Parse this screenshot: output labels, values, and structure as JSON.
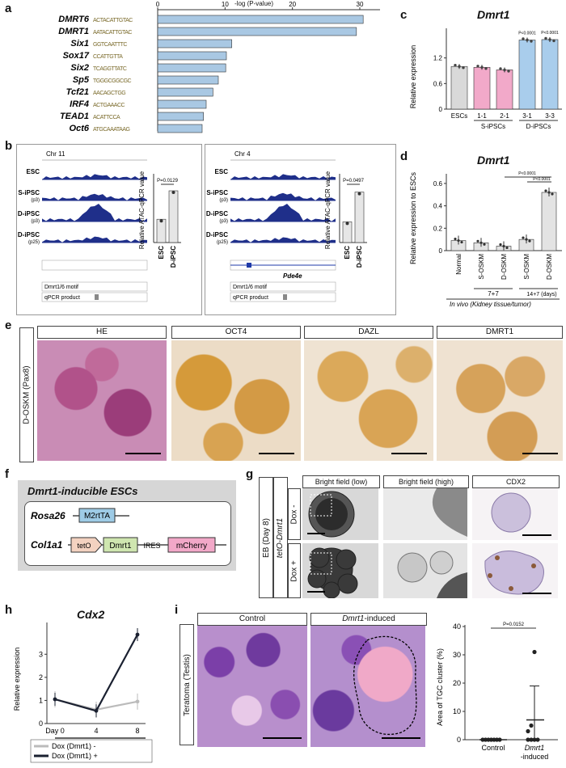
{
  "panels": {
    "a": "a",
    "b": "b",
    "c": "c",
    "d": "d",
    "e": "e",
    "f": "f",
    "g": "g",
    "h": "h",
    "i": "i"
  },
  "panel_a": {
    "axis_label": "-log (P-value)",
    "ticks": [
      "0",
      "10",
      "20",
      "30"
    ],
    "motifs": [
      "DMRT6",
      "DMRT1",
      "Six1",
      "Sox17",
      "Six2",
      "Sp5",
      "Tcf21",
      "IRF4",
      "TEAD1",
      "Oct6"
    ],
    "motif_logos": [
      "ACTACATTGTAC",
      "AATACATTGTAC",
      "GGTCAATTTC",
      "CCATTGTTA",
      "TCAGGTTATC",
      "TGGGCGGCGC",
      "AACAGCTGG",
      "ACTGAAACC",
      "ACATTCCA",
      "ATGCAAATAAG"
    ],
    "bar_color": "#a9c8e3"
  },
  "panel_b": {
    "loci": [
      {
        "chr": "Chr 11",
        "gene": "",
        "tracks": [
          "ESC",
          "S-iPSC",
          "D-iPSC",
          "D-iPSC"
        ],
        "track_sub": [
          "",
          "(p3)",
          "(p3)",
          "(p25)"
        ],
        "motif": "Dmrt1/6 motif",
        "qpcr": "qPCR product",
        "p": "P=0.0129"
      },
      {
        "chr": "Chr 4",
        "gene": "Pde4e",
        "tracks": [
          "ESC",
          "S-iPSC",
          "D-iPSC",
          "D-iPSC"
        ],
        "track_sub": [
          "",
          "(p3)",
          "(p3)",
          "(p25)"
        ],
        "motif": "Dmrt1/6 motif",
        "qpcr": "qPCR product",
        "p": "P=0.0497"
      }
    ],
    "bar_ylabel": "Relative ATAC-qPCR value",
    "bar_categories": [
      "ESC",
      "D-iPSC"
    ],
    "track_color": "#1f2f8a"
  },
  "chart_data": [
    {
      "type": "bar",
      "title": "",
      "xlabel": "-log (P-value)",
      "categories": [
        "DMRT6",
        "DMRT1",
        "Six1",
        "Sox17",
        "Six2",
        "Sp5",
        "Tcf21",
        "IRF4",
        "TEAD1",
        "Oct6"
      ],
      "values": [
        30.5,
        29.5,
        11.0,
        10.2,
        10.1,
        9.0,
        8.2,
        7.2,
        6.8,
        6.6
      ],
      "xlim": [
        0,
        33
      ]
    },
    {
      "type": "bar",
      "title": "Dmrt1",
      "ylabel": "Relative expression",
      "categories": [
        "ESCs",
        "1-1",
        "2-1",
        "3-1",
        "3-3"
      ],
      "groups": [
        "S-iPSCs",
        "D-iPSCs"
      ],
      "values": [
        1.0,
        0.98,
        0.92,
        1.62,
        1.63
      ],
      "ylim": [
        0,
        1.8
      ],
      "yticks": [
        "0",
        "0.6",
        "1.2"
      ],
      "pvalues": [
        "P<0.0001",
        "P<0.0001"
      ],
      "colors": [
        "#d9d9d9",
        "#f2a9c9",
        "#f2a9c9",
        "#a9cdec",
        "#a9cdec"
      ]
    },
    {
      "type": "bar",
      "title": "Dmrt1",
      "ylabel": "Relative expression to ESCs",
      "categories": [
        "Normal",
        "S-OSKM",
        "D-OSKM",
        "S-OSKM",
        "D-OSKM"
      ],
      "groups": [
        "7+7",
        "14+7 (days)"
      ],
      "group_note": "In vivo (Kidney tissue/tumor)",
      "values": [
        0.09,
        0.07,
        0.04,
        0.1,
        0.52
      ],
      "ylim": [
        0,
        0.65
      ],
      "yticks": [
        "0",
        "0.2",
        "0.4",
        "0.6"
      ],
      "pvalues": [
        "P<0.0001",
        "P<0.0001"
      ]
    },
    {
      "type": "line",
      "title": "Cdx2",
      "ylabel": "Relative expression",
      "x": [
        "Day 0",
        "4",
        "8"
      ],
      "series": [
        {
          "name": "Dox (Dmrt1) -",
          "values": [
            1.05,
            0.6,
            0.95
          ],
          "color": "#bbbbbb"
        },
        {
          "name": "Dox (Dmrt1) +",
          "values": [
            1.05,
            0.55,
            3.85
          ],
          "color": "#1a2030"
        }
      ],
      "ylim": [
        0,
        4.2
      ],
      "yticks": [
        "0",
        "1",
        "2",
        "3"
      ],
      "xgroup": "tetO-Dmrt1"
    },
    {
      "type": "scatter",
      "ylabel": "Area of TGC cluster (%)",
      "categories": [
        "Control",
        "Dmrt1 -induced"
      ],
      "pvalue": "P=0.0152",
      "yticks": [
        "0",
        "10",
        "20",
        "30",
        "40"
      ],
      "ylim": [
        0,
        40
      ]
    }
  ],
  "panel_e": {
    "row_label": "D-OSKM (Pax8)",
    "columns": [
      "HE",
      "OCT4",
      "DAZL",
      "DMRT1"
    ]
  },
  "panel_f": {
    "title": "Dmrt1-inducible ESCs",
    "locus1": "Rosa26",
    "locus1_box": "M2rtTA",
    "locus2": "Col1a1",
    "elements": [
      "tetO",
      "Dmrt1",
      "IRES",
      "mCherry"
    ],
    "colors": {
      "m2rtta": "#9ecbe6",
      "teto": "#f3d2c0",
      "dmrt1": "#cfe6b0",
      "mcherry": "#f2a8c8"
    }
  },
  "panel_g": {
    "left_label": "EB (Day 8)",
    "left_label2": "tetO-Dmrt1",
    "columns": [
      "Bright field (low)",
      "Bright field (high)",
      "CDX2"
    ],
    "rows": [
      "Dox -",
      "Dox +"
    ]
  },
  "panel_i": {
    "row_label": "Teratoma (Testis)",
    "columns": [
      "Control",
      "Dmrt1-induced"
    ]
  }
}
